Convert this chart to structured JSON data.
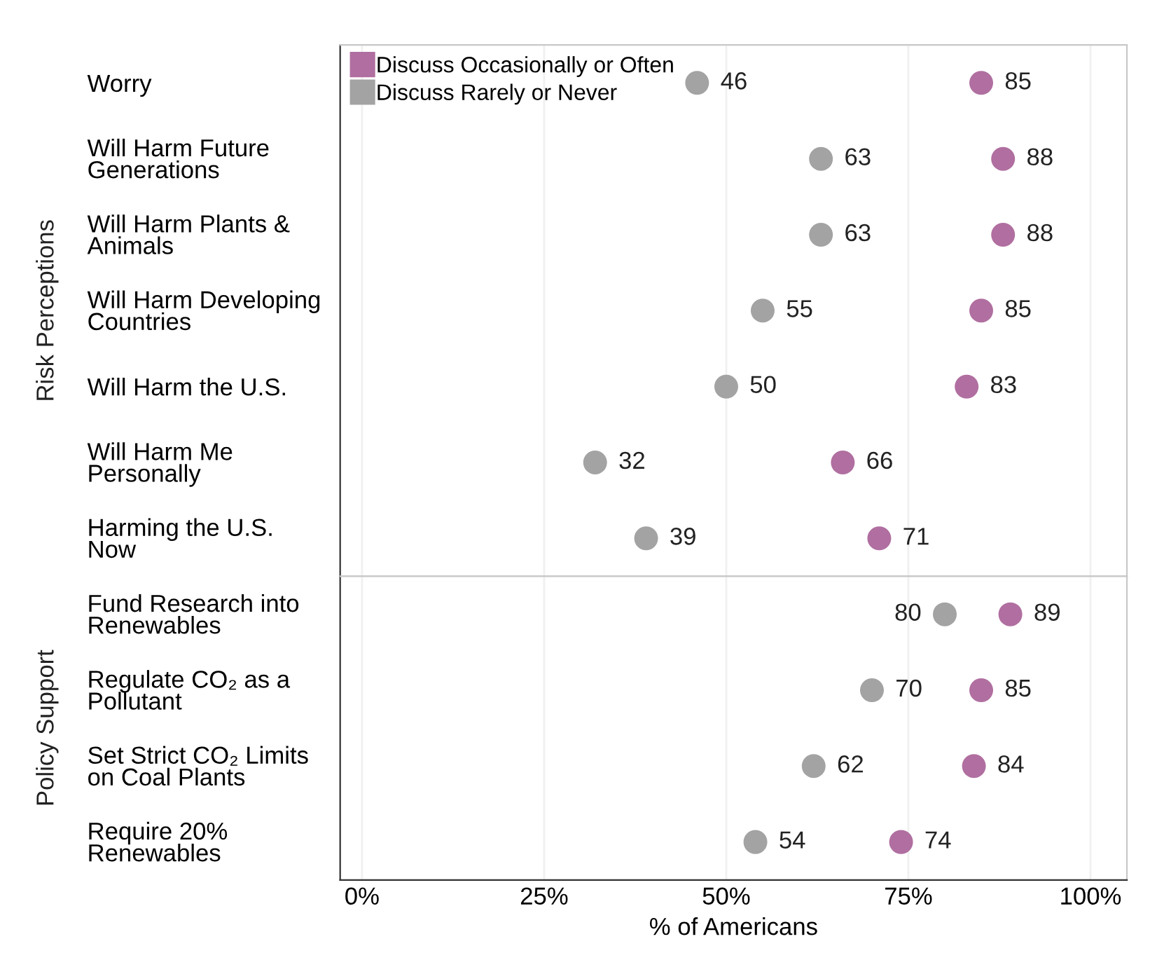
{
  "chart_data": [
    {
      "type": "scatter",
      "orientation": "horizontal",
      "ylabel": "Risk Perceptions",
      "tick_labels": "y",
      "categories": [
        "Worry",
        "Will Harm Future\nGenerations",
        "Will Harm Plants &\nAnimals",
        "Will Harm Developing\nCountries",
        "Will Harm the U.S.",
        "Will Harm Me\nPersonally",
        "Harming the U.S.\nNow"
      ],
      "series": [
        {
          "name": "Discuss Occasionally or Often",
          "color": "#b06fa0",
          "values": [
            85,
            88,
            88,
            85,
            83,
            66,
            71
          ]
        },
        {
          "name": "Discuss Rarely or Never",
          "color": "#a3a3a3",
          "values": [
            46,
            63,
            63,
            55,
            50,
            32,
            39
          ]
        }
      ],
      "xlim": [
        -3,
        105
      ],
      "xticks": [
        0,
        25,
        50,
        75,
        100
      ],
      "grid": "x",
      "legend": "top left",
      "marker": "circle",
      "data_labels": true
    },
    {
      "type": "scatter",
      "orientation": "horizontal",
      "ylabel": "Policy Support",
      "xlabel": "% of Americans",
      "categories": [
        "Fund Research into\nRenewables",
        "Regulate CO₂ as a\nPollutant",
        "Set Strict CO₂ Limits\non Coal Plants",
        "Require 20%\nRenewables"
      ],
      "series": [
        {
          "color": "#b06fa0",
          "values": [
            89,
            85,
            84,
            74
          ]
        },
        {
          "color": "#a3a3a3",
          "values": [
            80,
            70,
            62,
            54
          ]
        }
      ],
      "xlim": [
        -3,
        105
      ],
      "xticks": [
        {
          "value": 0,
          "label": "0%"
        },
        {
          "value": 25,
          "label": "25%"
        },
        {
          "value": 50,
          "label": "50%"
        },
        {
          "value": 75,
          "label": "75%"
        },
        {
          "value": 100,
          "label": "100%"
        }
      ],
      "grid": "x",
      "marker": "circle",
      "data_labels": true
    }
  ]
}
